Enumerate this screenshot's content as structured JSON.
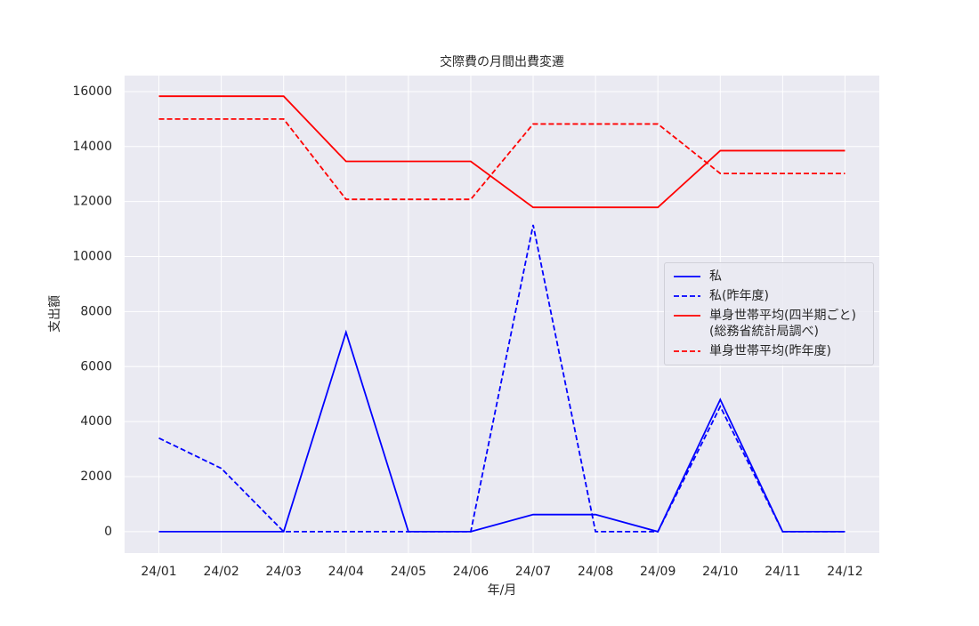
{
  "chart_data": {
    "type": "line",
    "title": "交際費の月間出費変遷",
    "x_label": "年/月",
    "y_label": "支出額",
    "categories": [
      "24/01",
      "24/02",
      "24/03",
      "24/04",
      "24/05",
      "24/06",
      "24/07",
      "24/08",
      "24/09",
      "24/10",
      "24/11",
      "24/12"
    ],
    "series": [
      {
        "name": "私",
        "color": "#0000ff",
        "linestyle": "solid",
        "values": [
          0,
          0,
          0,
          7250,
          0,
          0,
          620,
          620,
          0,
          4800,
          0,
          0
        ]
      },
      {
        "name": "私(昨年度)",
        "color": "#0000ff",
        "linestyle": "dashed",
        "values": [
          3400,
          2300,
          0,
          0,
          0,
          0,
          11150,
          0,
          0,
          4550,
          0,
          0
        ]
      },
      {
        "name": "単身世帯平均(四半期ごと)\n(総務省統計局調べ)",
        "color": "#ff0000",
        "linestyle": "solid",
        "values": [
          15830,
          15830,
          15830,
          13460,
          13460,
          13460,
          11790,
          11790,
          11790,
          13850,
          13850,
          13850
        ]
      },
      {
        "name": "単身世帯平均(昨年度)",
        "color": "#ff0000",
        "linestyle": "dashed",
        "values": [
          15000,
          15000,
          15000,
          12080,
          12080,
          12080,
          14820,
          14820,
          14820,
          13020,
          13020,
          13020
        ]
      }
    ],
    "ylim": [
      -780,
      16580
    ],
    "yticks": [
      0,
      2000,
      4000,
      6000,
      8000,
      10000,
      12000,
      14000,
      16000
    ],
    "grid": true,
    "legend": "center right"
  }
}
